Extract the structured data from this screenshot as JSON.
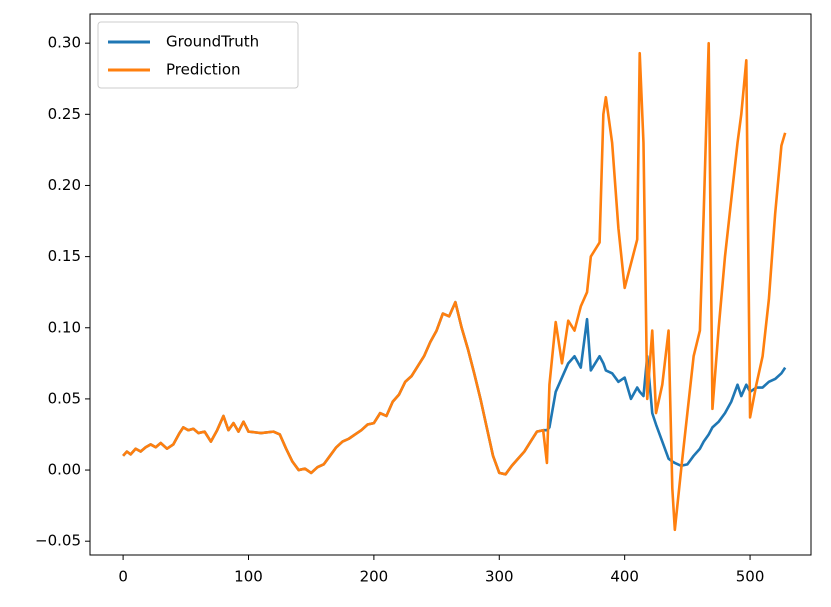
{
  "chart_data": {
    "type": "line",
    "x": [
      0,
      3,
      6,
      10,
      14,
      18,
      22,
      26,
      30,
      35,
      40,
      45,
      48,
      52,
      56,
      60,
      65,
      70,
      75,
      80,
      84,
      88,
      92,
      96,
      100,
      110,
      120,
      125,
      130,
      135,
      140,
      145,
      150,
      155,
      160,
      165,
      170,
      175,
      180,
      185,
      190,
      195,
      200,
      205,
      210,
      215,
      220,
      225,
      230,
      235,
      240,
      245,
      250,
      255,
      260,
      265,
      270,
      275,
      280,
      285,
      290,
      295,
      300,
      305,
      310,
      315,
      320,
      325,
      330,
      335,
      338,
      340,
      345,
      350,
      355,
      360,
      365,
      370,
      373,
      380,
      383,
      385,
      390,
      395,
      400,
      405,
      410,
      412,
      415,
      418,
      422,
      425,
      430,
      435,
      438,
      440,
      445,
      450,
      455,
      460,
      463,
      467,
      470,
      475,
      480,
      485,
      490,
      493,
      497,
      500,
      505,
      510,
      515,
      520,
      525,
      528
    ],
    "series": [
      {
        "name": "GroundTruth",
        "color": "#1f77b4",
        "values": [
          0.01,
          0.013,
          0.011,
          0.015,
          0.013,
          0.016,
          0.018,
          0.016,
          0.019,
          0.015,
          0.018,
          0.026,
          0.03,
          0.028,
          0.029,
          0.026,
          0.027,
          0.02,
          0.028,
          0.038,
          0.028,
          0.033,
          0.027,
          0.034,
          0.027,
          0.026,
          0.027,
          0.025,
          0.015,
          0.006,
          0.0,
          0.001,
          -0.002,
          0.002,
          0.004,
          0.01,
          0.016,
          0.02,
          0.022,
          0.025,
          0.028,
          0.032,
          0.033,
          0.04,
          0.038,
          0.048,
          0.053,
          0.062,
          0.066,
          0.073,
          0.08,
          0.09,
          0.098,
          0.11,
          0.108,
          0.118,
          0.1,
          0.085,
          0.068,
          0.05,
          0.03,
          0.01,
          -0.002,
          -0.003,
          0.003,
          0.008,
          0.013,
          0.02,
          0.027,
          0.028,
          0.028,
          0.03,
          0.055,
          0.065,
          0.075,
          0.08,
          0.072,
          0.106,
          0.07,
          0.08,
          0.075,
          0.07,
          0.068,
          0.062,
          0.065,
          0.05,
          0.058,
          0.055,
          0.052,
          0.08,
          0.04,
          0.032,
          0.02,
          0.008,
          0.006,
          0.005,
          0.003,
          0.004,
          0.01,
          0.015,
          0.02,
          0.025,
          0.03,
          0.034,
          0.04,
          0.048,
          0.06,
          0.052,
          0.06,
          0.055,
          0.058,
          0.058,
          0.062,
          0.064,
          0.068,
          0.072
        ]
      },
      {
        "name": "Prediction",
        "color": "#ff7f0e",
        "values": [
          0.01,
          0.013,
          0.011,
          0.015,
          0.013,
          0.016,
          0.018,
          0.016,
          0.019,
          0.015,
          0.018,
          0.026,
          0.03,
          0.028,
          0.029,
          0.026,
          0.027,
          0.02,
          0.028,
          0.038,
          0.028,
          0.033,
          0.027,
          0.034,
          0.027,
          0.026,
          0.027,
          0.025,
          0.015,
          0.006,
          0.0,
          0.001,
          -0.002,
          0.002,
          0.004,
          0.01,
          0.016,
          0.02,
          0.022,
          0.025,
          0.028,
          0.032,
          0.033,
          0.04,
          0.038,
          0.048,
          0.053,
          0.062,
          0.066,
          0.073,
          0.08,
          0.09,
          0.098,
          0.11,
          0.108,
          0.118,
          0.1,
          0.085,
          0.068,
          0.05,
          0.03,
          0.01,
          -0.002,
          -0.003,
          0.003,
          0.008,
          0.013,
          0.02,
          0.027,
          0.028,
          0.005,
          0.06,
          0.104,
          0.075,
          0.105,
          0.098,
          0.115,
          0.125,
          0.15,
          0.16,
          0.25,
          0.262,
          0.23,
          0.17,
          0.128,
          0.145,
          0.162,
          0.293,
          0.23,
          0.05,
          0.098,
          0.04,
          0.06,
          0.098,
          -0.013,
          -0.042,
          0.0,
          0.04,
          0.08,
          0.098,
          0.18,
          0.3,
          0.043,
          0.1,
          0.15,
          0.19,
          0.23,
          0.25,
          0.288,
          0.037,
          0.06,
          0.08,
          0.12,
          0.18,
          0.228,
          0.237
        ]
      }
    ],
    "xlim": [
      -26.4,
      548.6
    ],
    "xticks": [
      0,
      100,
      200,
      300,
      400,
      500
    ],
    "ylim": [
      -0.0597,
      0.3205
    ],
    "yticks": [
      {
        "value": -0.05,
        "label": "−0.05"
      },
      {
        "value": 0,
        "label": "0.00"
      },
      {
        "value": 0.05,
        "label": "0.05"
      },
      {
        "value": 0.1,
        "label": "0.10"
      },
      {
        "value": 0.15,
        "label": "0.15"
      },
      {
        "value": 0.2,
        "label": "0.20"
      },
      {
        "value": 0.25,
        "label": "0.25"
      },
      {
        "value": 0.3,
        "label": "0.30"
      }
    ],
    "grid": false,
    "legend": "upper left"
  }
}
